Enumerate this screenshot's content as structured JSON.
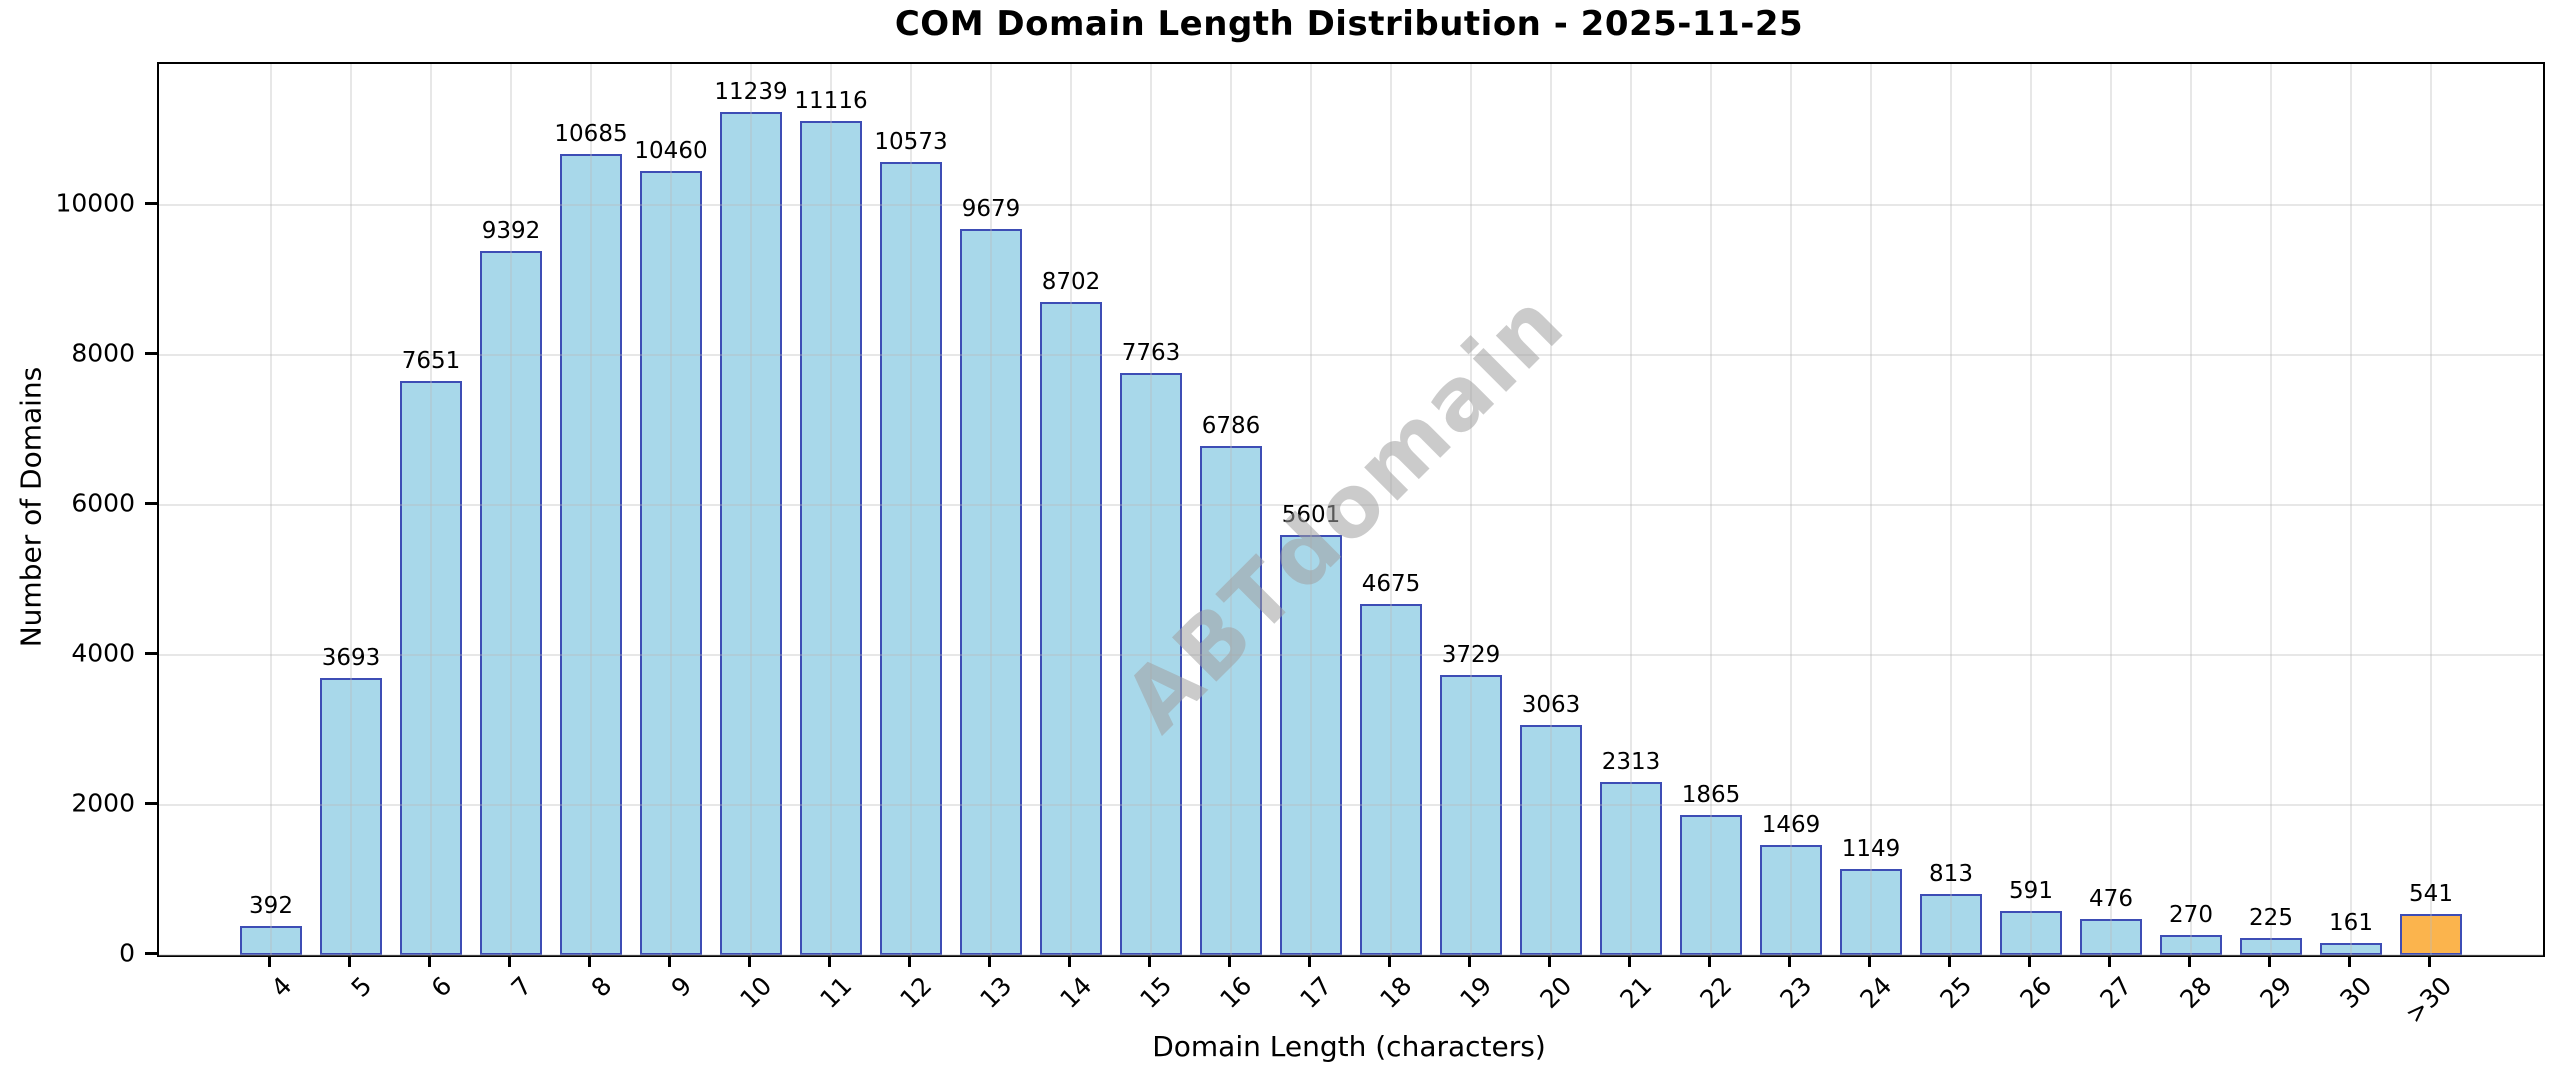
{
  "watermark": "ABTdomain",
  "chart_data": {
    "type": "bar",
    "title": "COM Domain Length Distribution - 2025-11-25",
    "xlabel": "Domain Length (characters)",
    "ylabel": "Number of Domains",
    "categories": [
      "4",
      "5",
      "6",
      "7",
      "8",
      "9",
      "10",
      "11",
      "12",
      "13",
      "14",
      "15",
      "16",
      "17",
      "18",
      "19",
      "20",
      "21",
      "22",
      "23",
      "24",
      "25",
      "26",
      "27",
      "28",
      "29",
      "30",
      ">30"
    ],
    "values": [
      392,
      3693,
      7651,
      9392,
      10685,
      10460,
      11239,
      11116,
      10573,
      9679,
      8702,
      7763,
      6786,
      5601,
      4675,
      3729,
      3063,
      2313,
      1865,
      1469,
      1149,
      813,
      591,
      476,
      270,
      225,
      161,
      541
    ],
    "value_labels_shown": true,
    "yticks": [
      0,
      2000,
      4000,
      6000,
      8000,
      10000
    ],
    "ylim": [
      0,
      11880
    ],
    "grid": true,
    "legend": "none",
    "bar_fill_color": "#A8D8EA",
    "bar_edge_color": "#3D4DB5",
    "highlight_bar_category": ">30",
    "highlight_bar_color": "#FBB44D",
    "watermark_color": "#A0A0A0"
  }
}
